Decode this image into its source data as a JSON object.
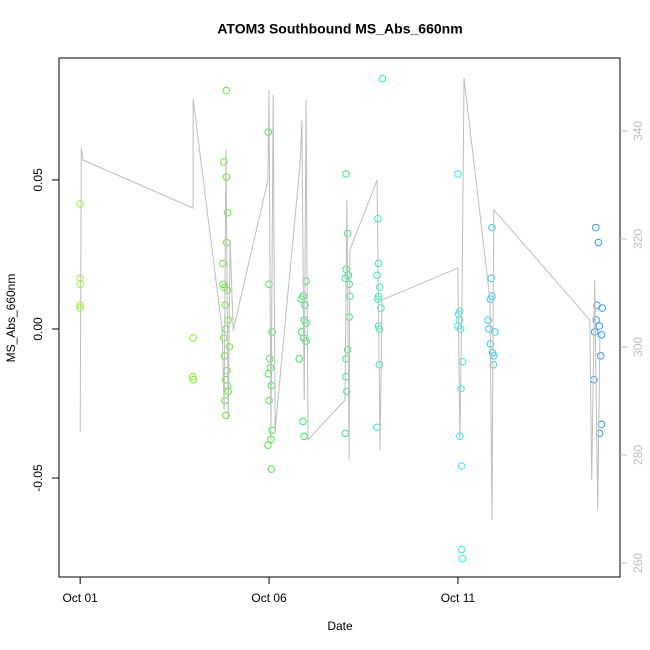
{
  "chart_data": {
    "type": "scatter",
    "title": "ATOM3 Southbound MS_Abs_660nm",
    "x_label": "Date",
    "y_label": "MS_Abs_660nm",
    "xlim": [
      -0.56,
      14.29
    ],
    "ylim": [
      -0.0832,
      0.0909
    ],
    "y2lim": [
      257.4,
      353.5
    ],
    "xticks": [
      {
        "value": 0,
        "label": "Oct 01"
      },
      {
        "value": 5,
        "label": "Oct 06"
      },
      {
        "value": 10,
        "label": "Oct 11"
      }
    ],
    "yticks": [
      {
        "value": -0.05,
        "label": "-0.05"
      },
      {
        "value": 0,
        "label": "0.00"
      },
      0.05
    ],
    "y2ticks": [
      260,
      280,
      300,
      320,
      340
    ],
    "series": [
      {
        "color": "#a6ee33",
        "x": [
          0,
          0,
          0,
          0,
          0
        ],
        "values": [
          0.042,
          0.017,
          0.015,
          0.008,
          0.007
        ]
      },
      {
        "color": "#88ee33",
        "x": [
          2.99,
          2.98,
          3.0
        ],
        "values": [
          -0.003,
          -0.016,
          -0.017
        ]
      },
      {
        "color": "#66ee33",
        "x": [
          3.87,
          3.8,
          3.87,
          3.9,
          3.88,
          3.78,
          3.78,
          3.82,
          3.9,
          3.84,
          3.92,
          3.86,
          3.8,
          3.95,
          3.82,
          3.89,
          3.85,
          3.9,
          3.92,
          3.83,
          3.86
        ],
        "values": [
          0.08,
          0.056,
          0.051,
          0.039,
          0.029,
          0.022,
          0.015,
          0.014,
          0.013,
          0.008,
          0.003,
          0.0,
          -0.003,
          -0.006,
          -0.009,
          -0.014,
          -0.017,
          -0.019,
          -0.021,
          -0.024,
          -0.029
        ]
      },
      {
        "color": "#44ee44",
        "x": [
          4.98,
          5.0,
          5.08,
          5.02,
          5.04,
          4.98,
          5.06,
          5.0,
          5.08,
          5.05,
          4.97,
          5.06
        ],
        "values": [
          0.066,
          0.015,
          -0.001,
          -0.01,
          -0.013,
          -0.015,
          -0.019,
          -0.024,
          -0.034,
          -0.037,
          -0.039,
          -0.047
        ]
      },
      {
        "color": "#33ee66",
        "x": [
          5.98,
          5.9,
          5.85,
          5.95,
          5.93,
          5.98,
          5.86,
          5.92,
          5.98,
          5.8,
          5.9,
          5.93
        ],
        "values": [
          0.016,
          0.011,
          0.01,
          0.008,
          0.003,
          0.002,
          -0.001,
          -0.003,
          -0.004,
          -0.01,
          -0.031,
          -0.036
        ]
      },
      {
        "color": "#33ee88",
        "x": [
          7.04,
          7.08,
          7.04,
          7.1,
          7.02,
          7.12,
          7.14,
          7.12,
          7.08,
          7.04,
          7.04,
          7.06,
          7.02
        ],
        "values": [
          0.052,
          0.032,
          0.02,
          0.018,
          0.017,
          0.015,
          0.011,
          0.004,
          -0.007,
          -0.01,
          -0.016,
          -0.021,
          -0.035
        ]
      },
      {
        "color": "#33eebb",
        "x": [
          8.0,
          7.88,
          7.9,
          7.86,
          7.93,
          7.9,
          7.88,
          7.96,
          7.9,
          7.92,
          7.92,
          7.85
        ],
        "values": [
          0.084,
          0.037,
          0.022,
          0.018,
          0.014,
          0.011,
          0.01,
          0.007,
          0.001,
          0.0,
          -0.012,
          -0.033
        ]
      },
      {
        "color": "#33eeee",
        "x": [
          10.0,
          10.05,
          10.02,
          10.04,
          10.0,
          10.07,
          10.12,
          10.08,
          10.05,
          10.1,
          10.1,
          10.12
        ],
        "values": [
          0.052,
          0.006,
          0.005,
          0.003,
          0.001,
          0.0,
          -0.011,
          -0.02,
          -0.036,
          -0.046,
          -0.074,
          -0.077
        ]
      },
      {
        "color": "#33ccee",
        "x": [
          10.9,
          10.88,
          10.9,
          10.86,
          10.8,
          10.82,
          10.98,
          10.86,
          10.92,
          10.95,
          10.94
        ],
        "values": [
          0.034,
          0.017,
          0.011,
          0.01,
          0.003,
          0.0,
          -0.001,
          -0.005,
          -0.008,
          -0.009,
          -0.012
        ]
      },
      {
        "color": "#3399ee",
        "x": [
          13.65,
          13.72,
          13.68,
          13.82,
          13.66,
          13.74,
          13.62,
          13.8,
          13.78,
          13.6,
          13.8,
          13.75
        ],
        "values": [
          0.034,
          0.029,
          0.008,
          0.007,
          0.003,
          0.001,
          -0.001,
          -0.002,
          -0.009,
          -0.017,
          -0.032,
          -0.035
        ]
      },
      {
        "color": "#bebebe",
        "axis": "y2",
        "style": "line",
        "x": [
          0,
          0.03,
          0.08,
          2.99,
          2.99,
          3.76,
          3.81,
          3.86,
          3.92,
          3.97,
          4.05,
          4.97,
          5.0,
          5.05,
          5.11,
          5.16,
          5.82,
          5.87,
          5.93,
          5.98,
          6.03,
          7.01,
          7.06,
          7.12,
          7.14,
          7.86,
          7.88,
          7.94,
          7.99,
          10.0,
          10.05,
          10.11,
          10.16,
          10.85,
          10.9,
          10.95,
          13.49,
          13.54,
          13.62,
          13.7,
          13.76
        ],
        "values": [
          284.3,
          336.9,
          334.6,
          325.7,
          345.9,
          303.1,
          288.3,
          336.5,
          286.5,
          319.8,
          303.1,
          330.9,
          347.6,
          282.8,
          346.7,
          284.6,
          333.7,
          342.0,
          290.2,
          345.7,
          282.8,
          290.2,
          327.2,
          279.1,
          318.0,
          330.9,
          318.0,
          280.9,
          308.7,
          314.6,
          282.8,
          310.6,
          349.8,
          308.7,
          268.0,
          325.4,
          305.0,
          275.4,
          312.4,
          269.8,
          303.1
        ]
      }
    ]
  }
}
